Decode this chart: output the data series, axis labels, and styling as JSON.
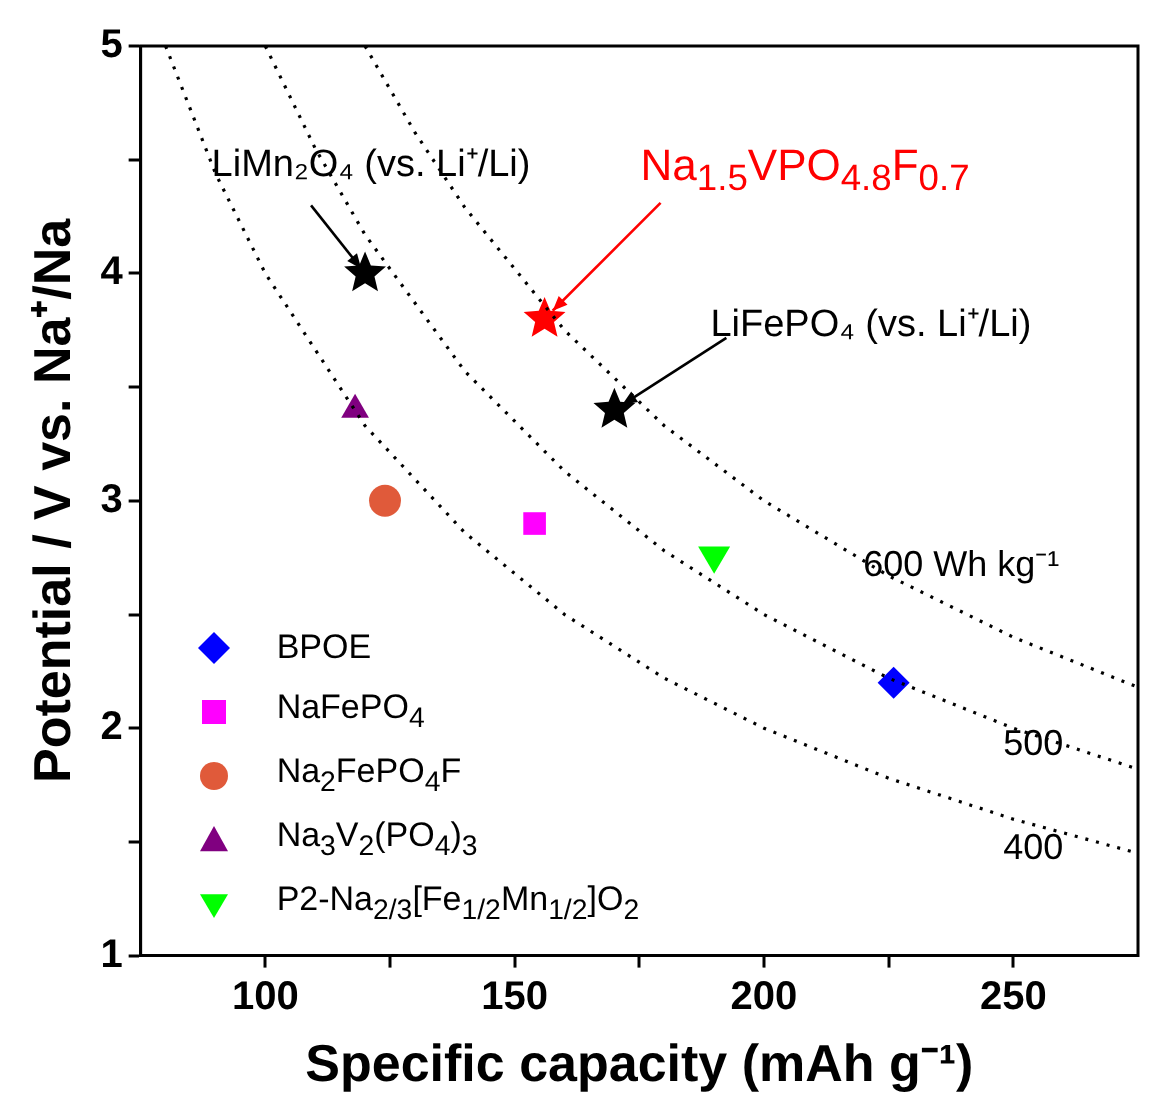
{
  "chart_data": {
    "type": "scatter",
    "xlabel": "Specific capacity (mAh g⁻¹)",
    "ylabel": "Potential / V vs. Na⁺/Na",
    "xlim": [
      75,
      275
    ],
    "ylim": [
      1,
      5
    ],
    "xticks": [
      100,
      {
        "value": 125,
        "label": null
      },
      150,
      {
        "value": 175,
        "label": null
      },
      200,
      {
        "value": 225,
        "label": null
      },
      250
    ],
    "yticks": [
      1,
      {
        "value": 1.5,
        "label": null
      },
      2,
      {
        "value": 2.5,
        "label": null
      },
      3,
      {
        "value": 3.5,
        "label": null
      },
      4,
      {
        "value": 4.5,
        "label": null
      },
      5
    ],
    "grid": false,
    "legend": "bottom left",
    "series": [
      {
        "name": "400",
        "type": "line",
        "color": "#000000",
        "line_style": "dotted",
        "marker": "none",
        "x": [
          80,
          90,
          100,
          120,
          140,
          160,
          180,
          200,
          225,
          250,
          275
        ],
        "values": [
          5,
          4.44,
          4,
          3.33,
          2.86,
          2.5,
          2.22,
          2,
          1.78,
          1.6,
          1.45
        ]
      },
      {
        "name": "500",
        "type": "line",
        "color": "#000000",
        "line_style": "dotted",
        "marker": "none",
        "x": [
          100,
          110,
          120,
          140,
          160,
          180,
          200,
          225,
          250,
          275
        ],
        "values": [
          5,
          4.55,
          4.17,
          3.57,
          3.13,
          2.78,
          2.5,
          2.22,
          2,
          1.82
        ]
      },
      {
        "name": "600 Wh kg⁻¹",
        "type": "line",
        "color": "#000000",
        "line_style": "dotted",
        "marker": "none",
        "x": [
          120,
          130,
          140,
          160,
          180,
          200,
          225,
          250,
          275
        ],
        "values": [
          5,
          4.62,
          4.29,
          3.75,
          3.33,
          3,
          2.67,
          2.4,
          2.18
        ]
      },
      {
        "name": "BPOE",
        "marker": "diamond",
        "color": "#0000ff",
        "x": [
          226
        ],
        "values": [
          2.2
        ]
      },
      {
        "name": "NaFePO$_{4}$",
        "marker": "square",
        "color": "#ff00ff",
        "x": [
          154
        ],
        "values": [
          2.9
        ]
      },
      {
        "name": "Na$_{2}$FePO$_{4}$F",
        "marker": "circle",
        "color": "#e05a3a",
        "x": [
          124
        ],
        "values": [
          3.0
        ]
      },
      {
        "name": "Na$_{3}$V$_{2}$(PO$_{4}$)$_{3}$",
        "marker": "triangle",
        "color": "#800080",
        "x": [
          118
        ],
        "values": [
          3.4
        ]
      },
      {
        "name": "P2-Na$_{2/3}$[Fe$_{1/2}$Mn$_{1/2}$]O$_{2}$",
        "marker": "triangle-down",
        "color": "#00ff00",
        "x": [
          190
        ],
        "values": [
          2.75
        ]
      },
      {
        "marker": "star",
        "color": "#000000",
        "x": [
          120,
          170
        ],
        "values": [
          4.0,
          3.4
        ]
      },
      {
        "marker": "star",
        "color": "#ff0000",
        "x": [
          156
        ],
        "values": [
          3.8
        ]
      }
    ],
    "annotations": [
      {
        "text": "LiMn₂O₄ (vs. Li⁺/Li)",
        "x": 120,
        "y": 4.0
      },
      {
        "text": "Na$_{1.5}$VPO$_{4.8}$F$_{0.7}$",
        "x": 156,
        "y": 3.8
      },
      {
        "text": "LiFePO₄ (vs. Li⁺/Li)",
        "x": 170,
        "y": 3.4
      }
    ]
  }
}
